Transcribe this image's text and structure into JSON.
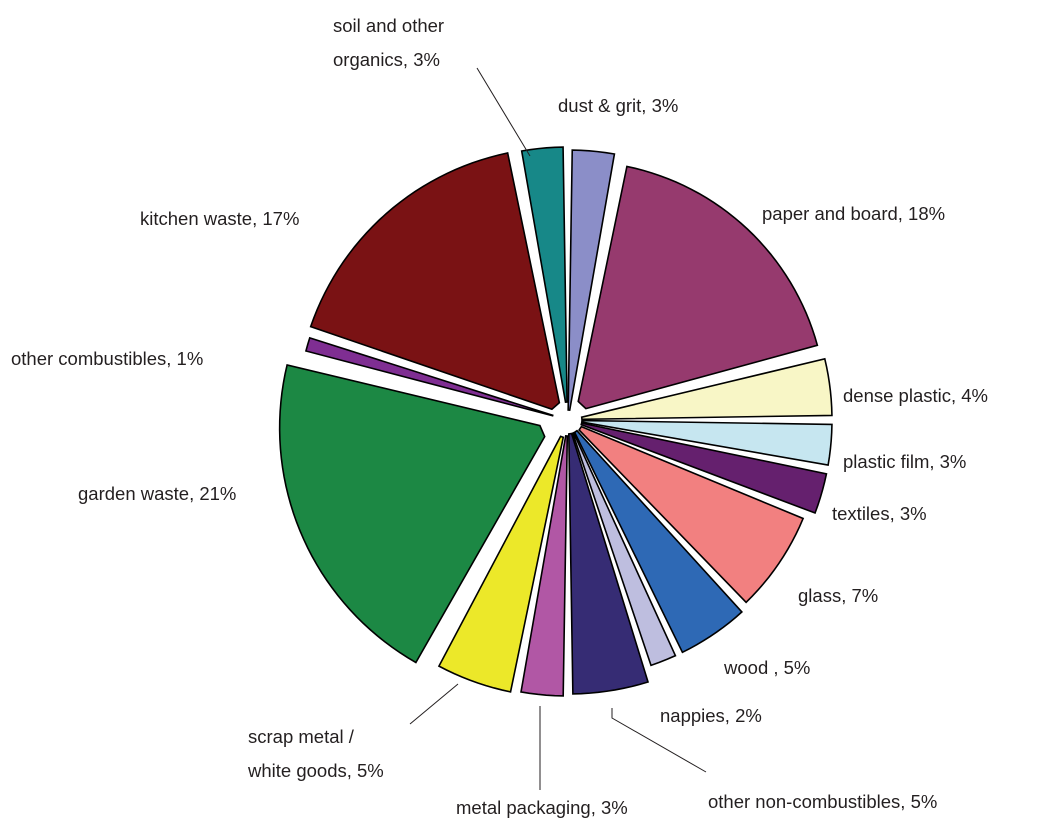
{
  "chart_data": {
    "type": "pie",
    "exploded": true,
    "legend": "none",
    "slices": [
      {
        "label": "dust & grit, 3%",
        "name": "dust & grit",
        "value": 3,
        "color": "#8b8ec8"
      },
      {
        "label": "paper and board, 18%",
        "name": "paper and board",
        "value": 18,
        "color": "#963a6e"
      },
      {
        "label": "dense plastic, 4%",
        "name": "dense plastic",
        "value": 4,
        "color": "#f8f6c6"
      },
      {
        "label": "plastic film, 3%",
        "name": "plastic film",
        "value": 3,
        "color": "#c6e6f0"
      },
      {
        "label": "textiles, 3%",
        "name": "textiles",
        "value": 3,
        "color": "#65206e"
      },
      {
        "label": "glass, 7%",
        "name": "glass",
        "value": 7,
        "color": "#f28080"
      },
      {
        "label": "wood , 5%",
        "name": "wood",
        "value": 5,
        "color": "#2e69b5"
      },
      {
        "label": "nappies, 2%",
        "name": "nappies",
        "value": 2,
        "color": "#bebedf"
      },
      {
        "label": "other non-combustibles, 5%",
        "name": "other non-combustibles",
        "value": 5,
        "color": "#362c74"
      },
      {
        "label": "metal packaging, 3%",
        "name": "metal packaging",
        "value": 3,
        "color": "#b157a5"
      },
      {
        "label": "scrap metal / white goods, 5%",
        "name": "scrap metal / white goods",
        "value": 5,
        "color": "#ece829",
        "lines": [
          "scrap metal /",
          "white goods, 5%"
        ]
      },
      {
        "label": "garden waste, 21%",
        "name": "garden waste",
        "value": 21,
        "color": "#1c8844"
      },
      {
        "label": "other combustibles, 1%",
        "name": "other combustibles",
        "value": 1,
        "color": "#7f2e92"
      },
      {
        "label": "kitchen waste, 17%",
        "name": "kitchen waste",
        "value": 17,
        "color": "#7a1214"
      },
      {
        "label": "soil and other organics, 3%",
        "name": "soil and other organics",
        "value": 3,
        "color": "#178888",
        "lines": [
          "soil and other",
          "organics, 3%"
        ]
      }
    ]
  }
}
